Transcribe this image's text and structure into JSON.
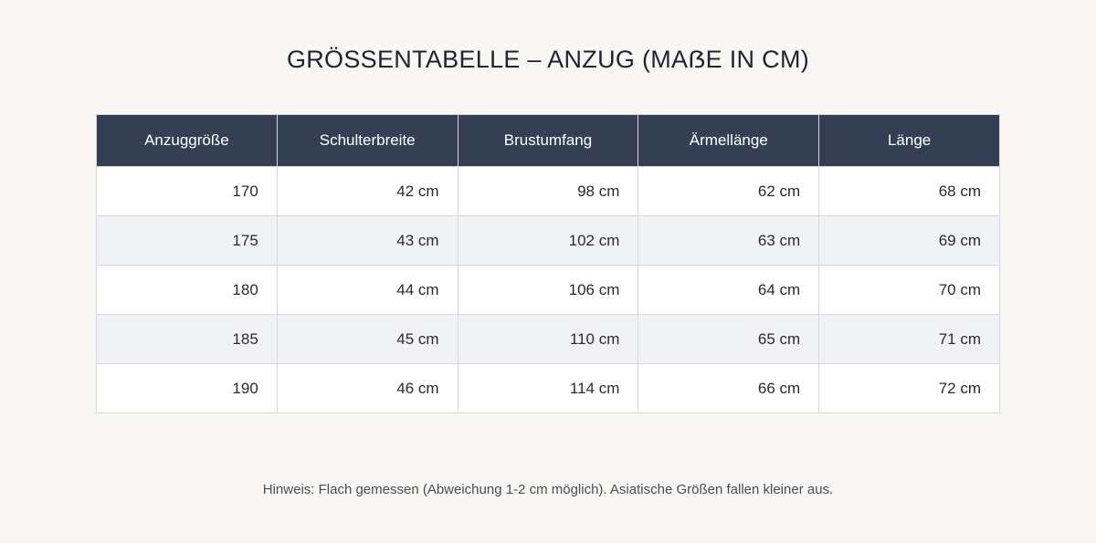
{
  "title": "GRÖSSENTABELLE – ANZUG (MAẞE IN CM)",
  "table": {
    "headers": [
      "Anzuggröße",
      "Schulterbreite",
      "Brustumfang",
      "Ärmellänge",
      "Länge"
    ],
    "rows": [
      [
        "170",
        "42 cm",
        "98 cm",
        "62 cm",
        "68 cm"
      ],
      [
        "175",
        "43 cm",
        "102 cm",
        "63 cm",
        "69 cm"
      ],
      [
        "180",
        "44 cm",
        "106 cm",
        "64 cm",
        "70 cm"
      ],
      [
        "185",
        "45 cm",
        "110 cm",
        "65 cm",
        "71 cm"
      ],
      [
        "190",
        "46 cm",
        "114 cm",
        "66 cm",
        "72 cm"
      ]
    ]
  },
  "note": "Hinweis: Flach gemessen (Abweichung 1-2 cm möglich). Asiatische Größen fallen kleiner aus.",
  "colors": {
    "background": "#f8f7f3",
    "header_bg": "#343f54",
    "row_alt_bg": "#f1f2f5"
  }
}
